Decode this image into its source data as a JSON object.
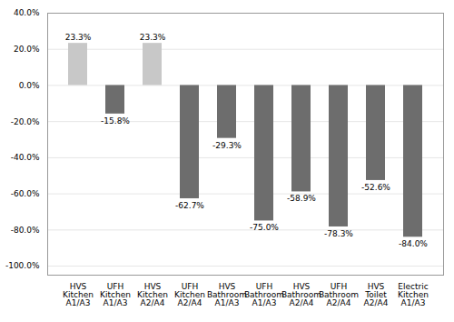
{
  "chart_data": {
    "type": "bar",
    "categories": [
      "HVS\nKitchen\nA1/A3",
      "UFH\nKitchen\nA1/A3",
      "HVS\nKitchen\nA2/A4",
      "UFH\nKitchen\nA2/A4",
      "HVS\nBathroom\nA1/A3",
      "UFH\nBathroom\nA1/A3",
      "HVS\nBathroom\nA2/A4",
      "UFH\nBathroom\nA2/A4",
      "HVS\nToilet\nA2/A4",
      "Electric\nKitchen\nA1/A3"
    ],
    "values": [
      23.3,
      -15.8,
      23.3,
      -62.7,
      -29.3,
      -75.0,
      -58.9,
      -78.3,
      -52.6,
      -84.0
    ],
    "value_labels": [
      "23.3%",
      "-15.8%",
      "23.3%",
      "-62.7%",
      "-29.3%",
      "-75.0%",
      "-58.9%",
      "-78.3%",
      "-52.6%",
      "-84.0%"
    ],
    "colors": [
      "#c8c8c8",
      "#6d6d6d",
      "#c8c8c8",
      "#6d6d6d",
      "#6d6d6d",
      "#6d6d6d",
      "#6d6d6d",
      "#6d6d6d",
      "#6d6d6d",
      "#6d6d6d"
    ],
    "ylim": [
      -105.0,
      40.0
    ],
    "yticks": [
      {
        "value": 40.0,
        "label": "40.0%"
      },
      {
        "value": 20.0,
        "label": "20.0%"
      },
      {
        "value": 0.0,
        "label": "0.0%"
      },
      {
        "value": -20.0,
        "label": "-20.0%"
      },
      {
        "value": -40.0,
        "label": "-40.0%"
      },
      {
        "value": -60.0,
        "label": "-60.0%"
      },
      {
        "value": -80.0,
        "label": "-80.0%"
      },
      {
        "value": -100.0,
        "label": "-100.0%"
      }
    ],
    "grid": true,
    "data_labels": true
  }
}
